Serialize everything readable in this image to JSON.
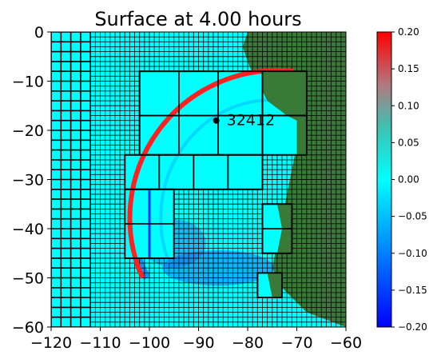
{
  "chart_data": {
    "type": "heatmap",
    "title": "Surface at 4.00 hours",
    "xlim": [
      -120,
      -60
    ],
    "ylim": [
      -60,
      0
    ],
    "xticks": [
      "-120",
      "-110",
      "-100",
      "-90",
      "-80",
      "-70",
      "-60"
    ],
    "yticks": [
      "0",
      "-10",
      "-20",
      "-30",
      "-40",
      "-50",
      "-60"
    ],
    "colorbar": {
      "min": -0.2,
      "max": 0.2,
      "ticks": [
        "0.20",
        "0.15",
        "0.10",
        "0.05",
        "0.00",
        "−0.05",
        "−0.10",
        "−0.15",
        "−0.20"
      ]
    },
    "grid_levels": {
      "coarse": {
        "x_step": 2,
        "y_step": 2
      },
      "fine": {
        "x_step": 1,
        "y_step": 1
      }
    },
    "refined_patches": [
      {
        "x": [
          -102,
          -77
        ],
        "y": [
          -25,
          -8
        ]
      },
      {
        "x": [
          -77,
          -68
        ],
        "y": [
          -17,
          -8
        ]
      },
      {
        "x": [
          -77,
          -68
        ],
        "y": [
          -25,
          -17
        ]
      },
      {
        "x": [
          -105,
          -77
        ],
        "y": [
          -32,
          -25
        ]
      },
      {
        "x": [
          -105,
          -95
        ],
        "y": [
          -46,
          -32
        ]
      },
      {
        "x": [
          -77,
          -71
        ],
        "y": [
          -45,
          -35
        ]
      },
      {
        "x": [
          -78,
          -73
        ],
        "y": [
          -54,
          -49
        ]
      }
    ],
    "gauge": {
      "label": "32412",
      "x": -86.4,
      "y": -18.0
    },
    "colors": {
      "land": "#3a7a38",
      "ocean": "#00ffff",
      "wave_front": "#ff2020",
      "trough": "#2060ff",
      "colormap": [
        "#0000ff",
        "#00ffff",
        "#ff0000"
      ]
    }
  }
}
